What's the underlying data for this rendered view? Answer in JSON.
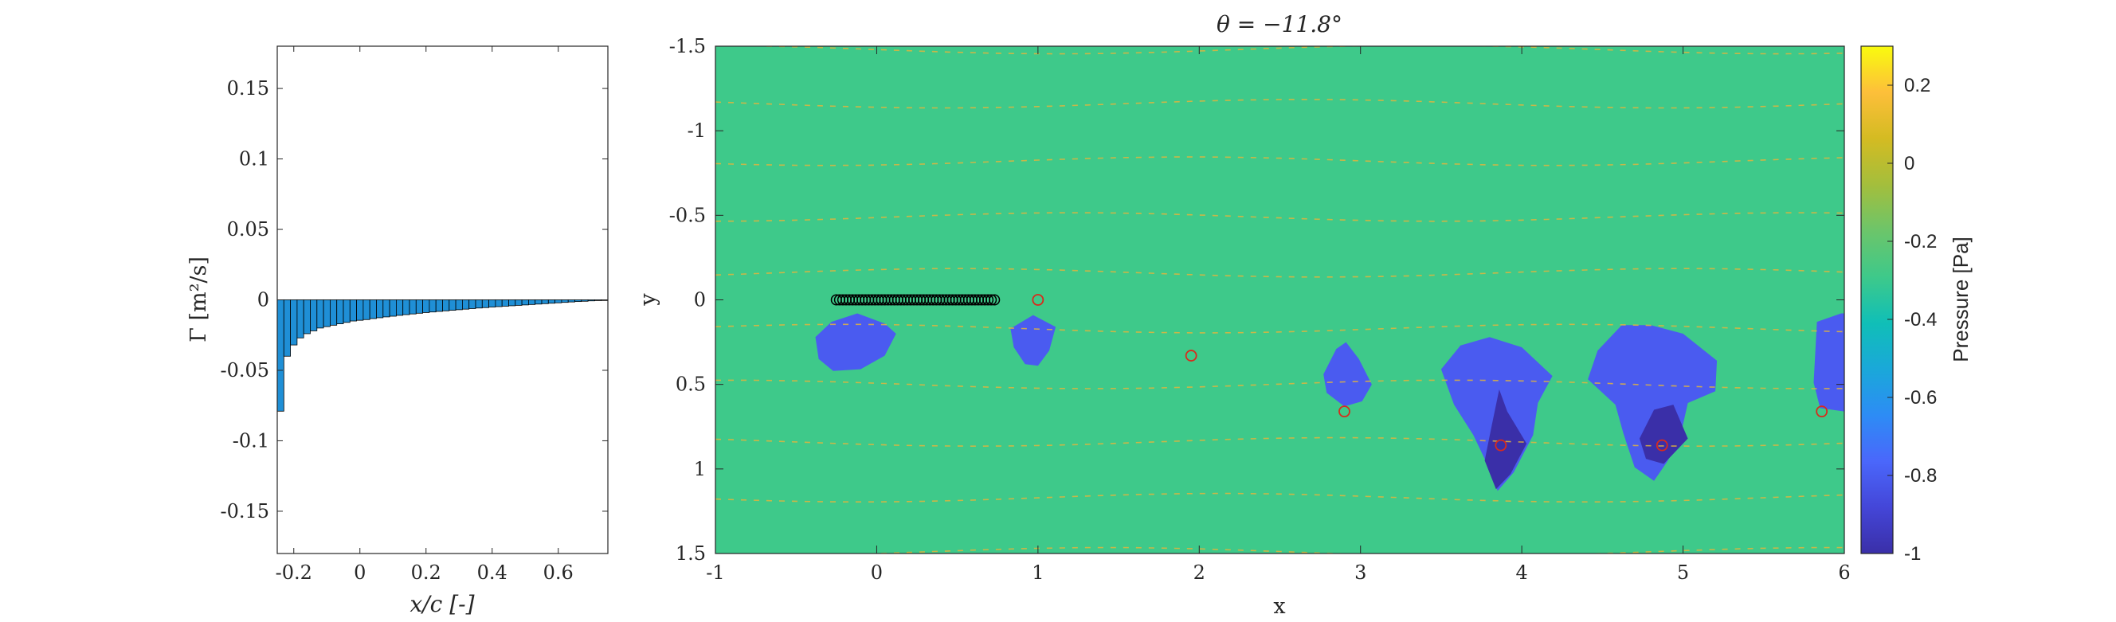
{
  "chart_data": [
    {
      "type": "bar",
      "xlabel": "x/c [-]",
      "ylabel": "Γ [m²/s]",
      "xlim": [
        -0.25,
        0.75
      ],
      "ylim": [
        -0.18,
        0.18
      ],
      "xticks": [
        "-0.2",
        "0",
        "0.2",
        "0.4",
        "0.6"
      ],
      "xtick_values": [
        -0.2,
        0,
        0.2,
        0.4,
        0.6
      ],
      "yticks": [
        "-0.15",
        "-0.1",
        "-0.05",
        "0",
        "0.05",
        "0.1",
        "0.15"
      ],
      "ytick_values": [
        -0.15,
        -0.1,
        -0.05,
        0,
        0.05,
        0.1,
        0.15
      ],
      "bar_color": "#1f8fd6",
      "x": [
        -0.24,
        -0.22,
        -0.2,
        -0.18,
        -0.16,
        -0.14,
        -0.12,
        -0.1,
        -0.08,
        -0.06,
        -0.04,
        -0.02,
        0.0,
        0.02,
        0.04,
        0.06,
        0.08,
        0.1,
        0.12,
        0.14,
        0.16,
        0.18,
        0.2,
        0.22,
        0.24,
        0.26,
        0.28,
        0.3,
        0.32,
        0.34,
        0.36,
        0.38,
        0.4,
        0.42,
        0.44,
        0.46,
        0.48,
        0.5,
        0.52,
        0.54,
        0.56,
        0.58,
        0.6,
        0.62,
        0.64,
        0.66,
        0.68,
        0.7,
        0.72,
        0.74
      ],
      "values": [
        -0.079,
        -0.04,
        -0.032,
        -0.027,
        -0.024,
        -0.022,
        -0.02,
        -0.019,
        -0.018,
        -0.017,
        -0.016,
        -0.015,
        -0.0145,
        -0.014,
        -0.0133,
        -0.0127,
        -0.0121,
        -0.0116,
        -0.011,
        -0.0105,
        -0.01,
        -0.0095,
        -0.009,
        -0.0086,
        -0.0082,
        -0.0078,
        -0.0074,
        -0.007,
        -0.0066,
        -0.0062,
        -0.0058,
        -0.0055,
        -0.0051,
        -0.0048,
        -0.0045,
        -0.0042,
        -0.0039,
        -0.0036,
        -0.0033,
        -0.003,
        -0.0027,
        -0.0024,
        -0.0021,
        -0.0018,
        -0.0015,
        -0.0012,
        -0.001,
        -0.0007,
        -0.0005,
        -0.0003
      ]
    },
    {
      "type": "heatmap",
      "title": "θ = −11.8°",
      "xlabel": "x",
      "ylabel": "y",
      "xlim": [
        -1,
        6
      ],
      "ylim": [
        -1.5,
        1.5
      ],
      "y_reversed": true,
      "xticks": [
        "-1",
        "0",
        "1",
        "2",
        "3",
        "4",
        "5",
        "6"
      ],
      "xtick_values": [
        -1,
        0,
        1,
        2,
        3,
        4,
        5,
        6
      ],
      "yticks": [
        "-1.5",
        "-1",
        "-0.5",
        "0",
        "0.5",
        "1",
        "1.5"
      ],
      "ytick_values": [
        -1.5,
        -1,
        -0.5,
        0,
        0.5,
        1,
        1.5
      ],
      "background_color": "#3ec98a",
      "blob_color": "#4a5bf0",
      "core_color": "#3a2fa8",
      "colorbar": {
        "label": "Pressure [Pa]",
        "range": [
          -1,
          0.3
        ],
        "ticks": [
          "0.2",
          "0",
          "-0.2",
          "-0.4",
          "-0.6",
          "-0.8",
          "-1"
        ],
        "tick_values": [
          0.2,
          0,
          -0.2,
          -0.4,
          -0.6,
          -0.8,
          -1
        ],
        "colors": [
          "#f9fb0e",
          "#fdbf3a",
          "#d4bb22",
          "#a4be3c",
          "#6cc56a",
          "#3ec98a",
          "#10bfb7",
          "#1aa8d9",
          "#2d8cf5",
          "#4a67fb",
          "#4446d8",
          "#3a2fa8"
        ]
      },
      "streamline_color": "#e2b43c",
      "streamline_y": [
        -1.48,
        -1.16,
        -0.82,
        -0.49,
        -0.16,
        0.17,
        0.5,
        0.84,
        1.17,
        1.49
      ],
      "airfoil_points_x": [
        -0.25,
        -0.23,
        -0.21,
        -0.19,
        -0.17,
        -0.15,
        -0.13,
        -0.11,
        -0.09,
        -0.07,
        -0.05,
        -0.03,
        -0.01,
        0.01,
        0.03,
        0.05,
        0.07,
        0.09,
        0.11,
        0.13,
        0.15,
        0.17,
        0.19,
        0.21,
        0.23,
        0.25,
        0.27,
        0.29,
        0.31,
        0.33,
        0.35,
        0.37,
        0.39,
        0.41,
        0.43,
        0.45,
        0.47,
        0.49,
        0.51,
        0.53,
        0.55,
        0.57,
        0.59,
        0.61,
        0.63,
        0.65,
        0.67,
        0.69,
        0.71,
        0.73
      ],
      "airfoil_y": 0,
      "vortices": [
        {
          "x": 1.0,
          "y": 0.0
        },
        {
          "x": 1.95,
          "y": 0.33
        },
        {
          "x": 2.9,
          "y": 0.66
        },
        {
          "x": 3.87,
          "y": 0.86
        },
        {
          "x": 4.87,
          "y": 0.86
        },
        {
          "x": 5.86,
          "y": 0.66
        }
      ],
      "low_pressure_regions": [
        {
          "points": [
            [
              -0.38,
              0.22
            ],
            [
              -0.28,
              0.13
            ],
            [
              -0.12,
              0.08
            ],
            [
              0.05,
              0.14
            ],
            [
              0.12,
              0.2
            ],
            [
              0.05,
              0.33
            ],
            [
              -0.1,
              0.41
            ],
            [
              -0.27,
              0.42
            ],
            [
              -0.36,
              0.35
            ]
          ]
        },
        {
          "points": [
            [
              0.83,
              0.17
            ],
            [
              0.97,
              0.09
            ],
            [
              1.11,
              0.16
            ],
            [
              1.07,
              0.3
            ],
            [
              1.0,
              0.39
            ],
            [
              0.92,
              0.38
            ],
            [
              0.85,
              0.28
            ]
          ]
        },
        {
          "points": [
            [
              2.77,
              0.44
            ],
            [
              2.85,
              0.29
            ],
            [
              2.91,
              0.25
            ],
            [
              2.99,
              0.35
            ],
            [
              3.07,
              0.5
            ],
            [
              3.01,
              0.6
            ],
            [
              2.9,
              0.63
            ],
            [
              2.79,
              0.55
            ]
          ]
        },
        {
          "points": [
            [
              3.5,
              0.41
            ],
            [
              3.62,
              0.27
            ],
            [
              3.8,
              0.22
            ],
            [
              4.0,
              0.28
            ],
            [
              4.19,
              0.45
            ],
            [
              4.1,
              0.61
            ],
            [
              4.07,
              0.8
            ],
            [
              3.95,
              1.02
            ],
            [
              3.85,
              1.13
            ],
            [
              3.79,
              0.98
            ],
            [
              3.7,
              0.8
            ],
            [
              3.58,
              0.62
            ]
          ]
        },
        {
          "points": [
            [
              4.41,
              0.47
            ],
            [
              4.47,
              0.3
            ],
            [
              4.62,
              0.15
            ],
            [
              4.8,
              0.15
            ],
            [
              5.0,
              0.2
            ],
            [
              5.21,
              0.36
            ],
            [
              5.2,
              0.54
            ],
            [
              5.03,
              0.61
            ],
            [
              4.98,
              0.82
            ],
            [
              4.9,
              0.96
            ],
            [
              4.82,
              1.07
            ],
            [
              4.7,
              0.99
            ],
            [
              4.63,
              0.79
            ],
            [
              4.58,
              0.62
            ]
          ]
        },
        {
          "points": [
            [
              5.83,
              0.13
            ],
            [
              5.98,
              0.08
            ],
            [
              6.0,
              0.08
            ],
            [
              6.0,
              0.66
            ],
            [
              5.85,
              0.64
            ],
            [
              5.81,
              0.49
            ]
          ]
        }
      ],
      "core_regions": [
        {
          "points": [
            [
              3.81,
              0.76
            ],
            [
              3.86,
              0.53
            ],
            [
              3.91,
              0.66
            ],
            [
              4.03,
              0.85
            ],
            [
              3.93,
              1.03
            ],
            [
              3.84,
              1.12
            ],
            [
              3.77,
              0.95
            ]
          ]
        },
        {
          "points": [
            [
              4.73,
              0.82
            ],
            [
              4.82,
              0.65
            ],
            [
              4.94,
              0.62
            ],
            [
              5.03,
              0.82
            ],
            [
              4.88,
              0.97
            ],
            [
              4.77,
              0.94
            ]
          ]
        }
      ]
    }
  ]
}
